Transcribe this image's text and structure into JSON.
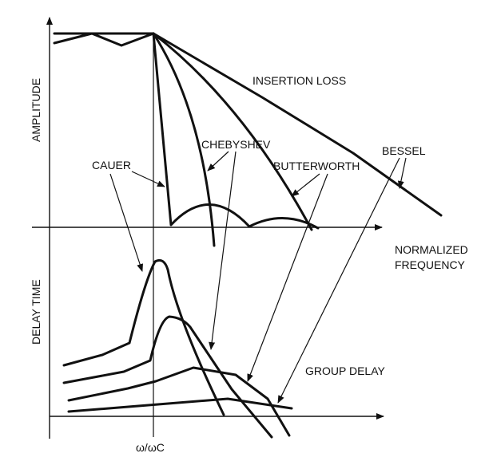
{
  "labels": {
    "amplitude": "AMPLITUDE",
    "delay_time": "DELAY TIME",
    "insertion_loss": "INSERTION LOSS",
    "chebyshev": "CHEBYSHEV",
    "cauer": "CAUER",
    "butterworth": "BUTTERWORTH",
    "bessel": "BESSEL",
    "normalized": "NORMALIZED",
    "frequency": "FREQUENCY",
    "group_delay": "GROUP DELAY",
    "cutoff": "ω/ωC"
  }
}
